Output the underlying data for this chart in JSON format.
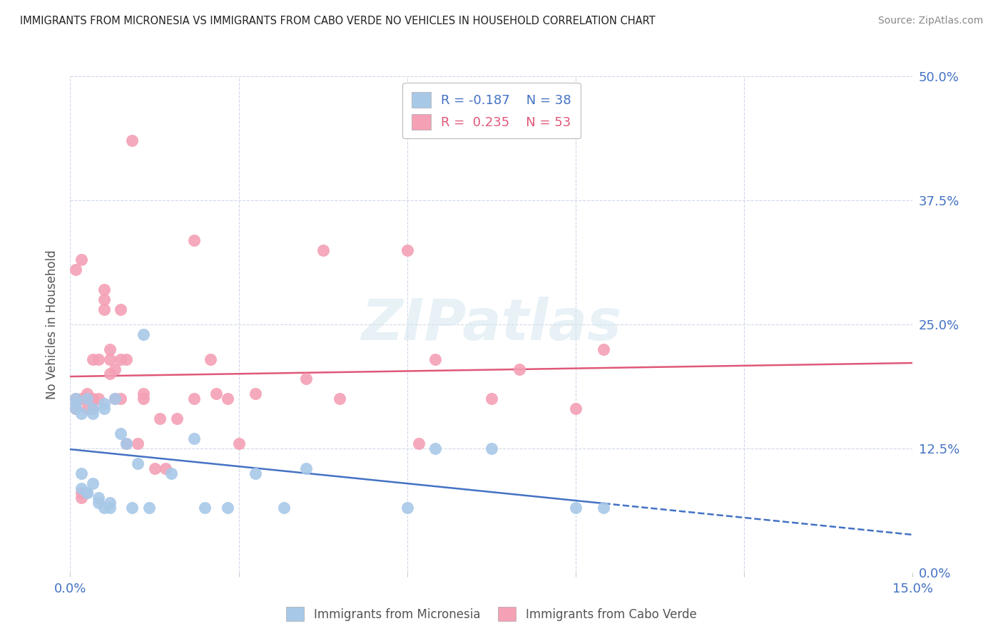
{
  "title": "IMMIGRANTS FROM MICRONESIA VS IMMIGRANTS FROM CABO VERDE NO VEHICLES IN HOUSEHOLD CORRELATION CHART",
  "source": "Source: ZipAtlas.com",
  "ylabel": "No Vehicles in Household",
  "xlim": [
    0.0,
    0.15
  ],
  "ylim": [
    0.0,
    0.5
  ],
  "xticks": [
    0.0,
    0.03,
    0.06,
    0.09,
    0.12,
    0.15
  ],
  "yticks": [
    0.0,
    0.125,
    0.25,
    0.375,
    0.5
  ],
  "ytick_labels": [
    "0.0%",
    "12.5%",
    "25.0%",
    "37.5%",
    "50.0%"
  ],
  "xtick_labels_show": [
    "0.0%",
    "",
    "",
    "",
    "",
    "15.0%"
  ],
  "micronesia_color": "#a8c8e8",
  "cabo_verde_color": "#f4a0b5",
  "line_blue": "#4472c4",
  "line_pink": "#e05878",
  "micronesia_R": -0.187,
  "micronesia_N": 38,
  "cabo_verde_R": 0.235,
  "cabo_verde_N": 53,
  "micronesia_x": [
    0.001,
    0.001,
    0.002,
    0.002,
    0.003,
    0.003,
    0.004,
    0.004,
    0.005,
    0.005,
    0.006,
    0.006,
    0.007,
    0.007,
    0.008,
    0.009,
    0.01,
    0.011,
    0.012,
    0.013,
    0.014,
    0.018,
    0.022,
    0.024,
    0.028,
    0.033,
    0.038,
    0.042,
    0.06,
    0.065,
    0.075,
    0.09,
    0.095,
    0.001,
    0.002,
    0.003,
    0.004,
    0.006
  ],
  "micronesia_y": [
    0.175,
    0.165,
    0.16,
    0.085,
    0.08,
    0.175,
    0.09,
    0.165,
    0.075,
    0.07,
    0.065,
    0.165,
    0.065,
    0.07,
    0.175,
    0.14,
    0.13,
    0.065,
    0.11,
    0.24,
    0.065,
    0.1,
    0.135,
    0.065,
    0.065,
    0.1,
    0.065,
    0.105,
    0.065,
    0.125,
    0.125,
    0.065,
    0.065,
    0.17,
    0.1,
    0.08,
    0.16,
    0.17
  ],
  "cabo_verde_x": [
    0.001,
    0.001,
    0.001,
    0.002,
    0.002,
    0.002,
    0.002,
    0.003,
    0.003,
    0.003,
    0.004,
    0.004,
    0.004,
    0.005,
    0.005,
    0.006,
    0.006,
    0.006,
    0.007,
    0.007,
    0.007,
    0.008,
    0.008,
    0.009,
    0.009,
    0.009,
    0.01,
    0.01,
    0.011,
    0.012,
    0.013,
    0.013,
    0.015,
    0.016,
    0.017,
    0.019,
    0.022,
    0.022,
    0.025,
    0.026,
    0.028,
    0.03,
    0.033,
    0.042,
    0.045,
    0.048,
    0.06,
    0.062,
    0.065,
    0.075,
    0.08,
    0.09,
    0.095
  ],
  "cabo_verde_y": [
    0.305,
    0.175,
    0.165,
    0.315,
    0.175,
    0.08,
    0.075,
    0.18,
    0.175,
    0.165,
    0.215,
    0.175,
    0.165,
    0.215,
    0.175,
    0.285,
    0.275,
    0.265,
    0.225,
    0.215,
    0.2,
    0.205,
    0.175,
    0.175,
    0.215,
    0.265,
    0.215,
    0.13,
    0.435,
    0.13,
    0.175,
    0.18,
    0.105,
    0.155,
    0.105,
    0.155,
    0.175,
    0.335,
    0.215,
    0.18,
    0.175,
    0.13,
    0.18,
    0.195,
    0.325,
    0.175,
    0.325,
    0.13,
    0.215,
    0.175,
    0.205,
    0.165,
    0.225
  ],
  "watermark_text": "ZIPatlas",
  "legend_label_micronesia": "Immigrants from Micronesia",
  "legend_label_cabo_verde": "Immigrants from Cabo Verde"
}
